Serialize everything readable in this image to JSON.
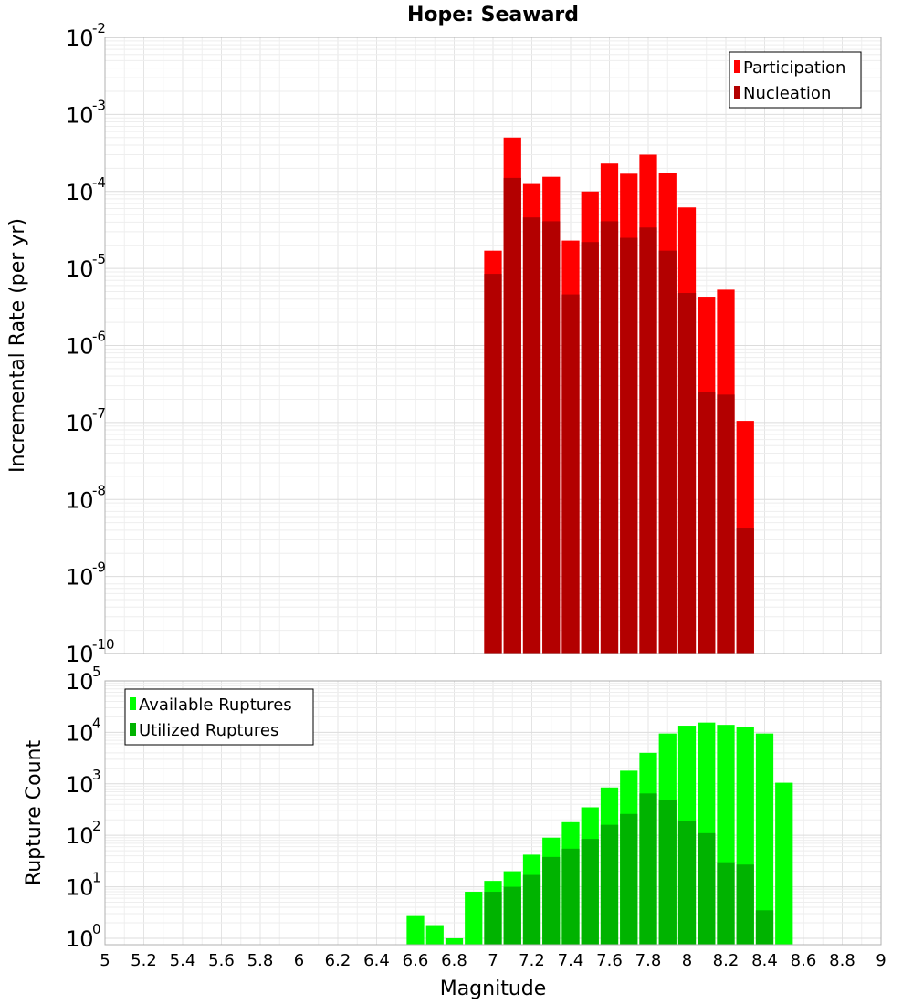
{
  "chart_data": [
    {
      "type": "bar",
      "title": "Hope: Seaward",
      "xlabel": "",
      "ylabel": "Incremental Rate (per yr)",
      "yscale": "log",
      "xlim": [
        5,
        9
      ],
      "ylim": [
        1e-10,
        0.01
      ],
      "grid": true,
      "legend_position": "top-right",
      "x": [
        7.0,
        7.1,
        7.2,
        7.3,
        7.4,
        7.5,
        7.6,
        7.7,
        7.8,
        7.9,
        8.0,
        8.1,
        8.2,
        8.3
      ],
      "series": [
        {
          "name": "Participation",
          "color": "#ff0000",
          "values": [
            1.7e-05,
            0.0005,
            0.000125,
            0.000155,
            2.3e-05,
            0.0001,
            0.00023,
            0.00017,
            0.0003,
            0.000175,
            6.2e-05,
            4.3e-06,
            5.3e-06,
            1.05e-07
          ]
        },
        {
          "name": "Nucleation",
          "color": "#b30000",
          "values": [
            8.5e-06,
            0.00015,
            4.6e-05,
            4.1e-05,
            4.6e-06,
            2.2e-05,
            4.1e-05,
            2.5e-05,
            3.4e-05,
            1.7e-05,
            4.8e-06,
            2.5e-07,
            2.3e-07,
            4.2e-09
          ]
        }
      ]
    },
    {
      "type": "bar",
      "title": "",
      "xlabel": "Magnitude",
      "ylabel": "Rupture Count",
      "yscale": "log",
      "xlim": [
        5,
        9
      ],
      "ylim": [
        0.75,
        100000.0
      ],
      "grid": true,
      "legend_position": "top-left",
      "xticks": [
        "5",
        "5.2",
        "5.4",
        "5.6",
        "5.8",
        "6",
        "6.2",
        "6.4",
        "6.6",
        "6.8",
        "7",
        "7.2",
        "7.4",
        "7.6",
        "7.8",
        "8",
        "8.2",
        "8.4",
        "8.6",
        "8.8",
        "9"
      ],
      "x": [
        6.6,
        6.7,
        6.8,
        6.9,
        7.0,
        7.1,
        7.2,
        7.3,
        7.4,
        7.5,
        7.6,
        7.7,
        7.8,
        7.9,
        8.0,
        8.1,
        8.2,
        8.3,
        8.4,
        8.5
      ],
      "series": [
        {
          "name": "Available Ruptures",
          "color": "#00ff00",
          "values": [
            2.7,
            1.8,
            1.0,
            8.0,
            13,
            20,
            42,
            90,
            180,
            350,
            850,
            1800,
            4000,
            9500,
            13500,
            15500,
            14000,
            12500,
            9500,
            1050
          ]
        },
        {
          "name": "Utilized Ruptures",
          "color": "#00b300",
          "values": [
            null,
            null,
            null,
            null,
            8.0,
            10,
            17,
            38,
            55,
            85,
            160,
            260,
            650,
            480,
            190,
            110,
            30,
            27,
            3.5,
            null
          ]
        }
      ]
    }
  ]
}
